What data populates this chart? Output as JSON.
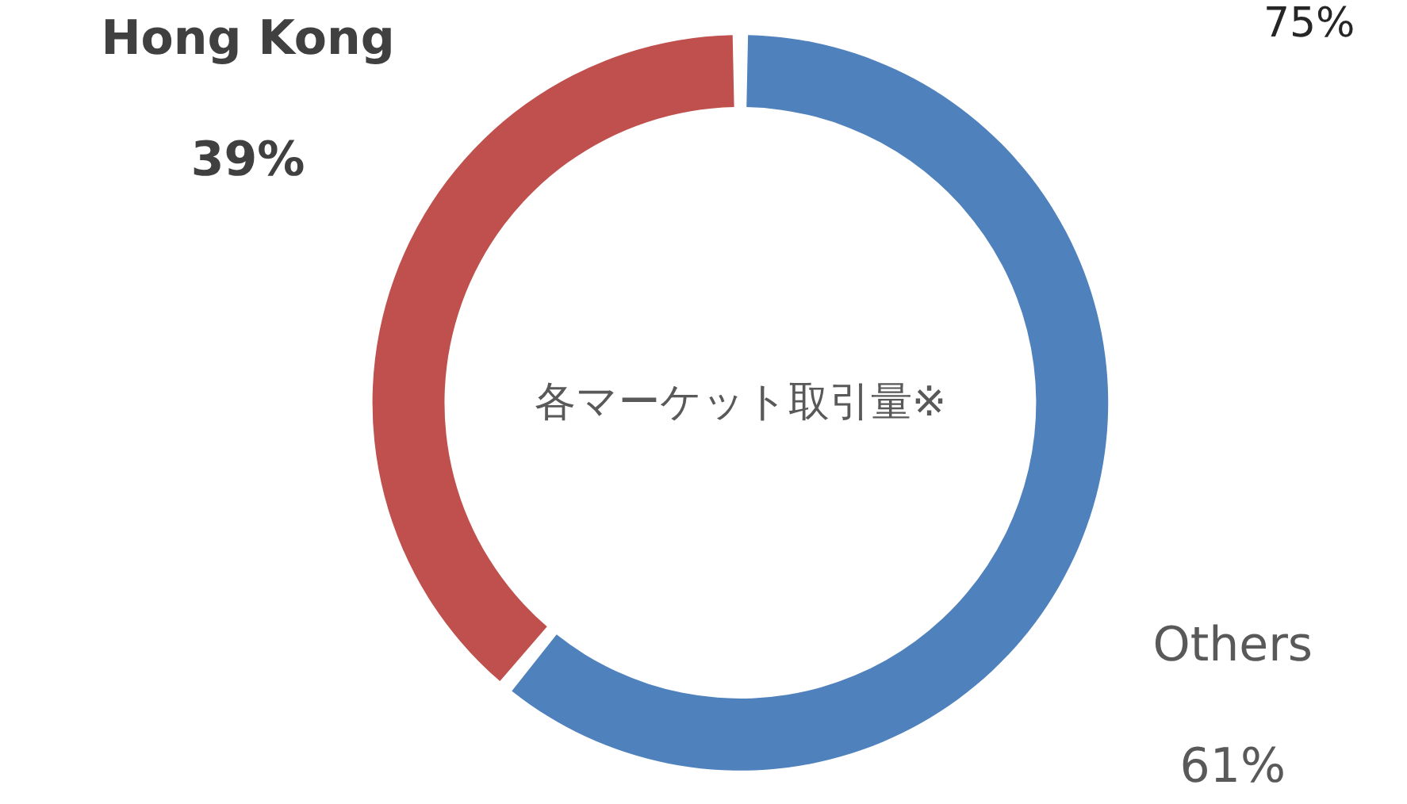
{
  "chart_data": {
    "type": "donut",
    "title": "各マーケット取引量※",
    "categories": [
      "Hong Kong",
      "Others"
    ],
    "values": [
      39,
      61
    ],
    "colors": [
      "#c0504d",
      "#4f81bd"
    ],
    "annotations": [
      "75%"
    ],
    "value_labels": [
      "39%",
      "61%"
    ]
  }
}
